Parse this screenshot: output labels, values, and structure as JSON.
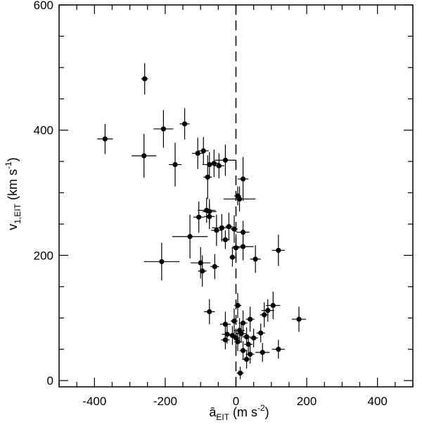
{
  "chart_data": {
    "type": "scatter",
    "title": "",
    "xlabel": {
      "base": "ā",
      "sub": "EIT",
      "unit_open": " (m s",
      "unit_sup": "-2",
      "unit_close": ")"
    },
    "ylabel": {
      "base": "v",
      "sub": "1,EIT",
      "unit_open": " (km s",
      "unit_sup": "-1",
      "unit_close": ")"
    },
    "xlim": [
      -500,
      500
    ],
    "ylim": [
      -10,
      600
    ],
    "x_ticks": [
      -400,
      -200,
      0,
      200,
      400
    ],
    "y_ticks": [
      0,
      200,
      400,
      600
    ],
    "x_tick_labels": [
      "-400",
      "-200",
      "0",
      "200",
      "400"
    ],
    "y_tick_labels": [
      "0",
      "200",
      "400",
      "600"
    ],
    "x_minor_step": 50,
    "y_minor_step": 50,
    "reference_line": {
      "x": 0,
      "style": "dashed"
    },
    "grid": false,
    "legend": "none",
    "points": [
      {
        "x": -258,
        "y": 482,
        "xerr": 10,
        "yerr": 25
      },
      {
        "x": -370,
        "y": 386,
        "xerr": 22,
        "yerr": 24
      },
      {
        "x": -260,
        "y": 359,
        "xerr": 35,
        "yerr": 35
      },
      {
        "x": -205,
        "y": 402,
        "xerr": 28,
        "yerr": 30
      },
      {
        "x": -172,
        "y": 345,
        "xerr": 18,
        "yerr": 35
      },
      {
        "x": -145,
        "y": 410,
        "xerr": 14,
        "yerr": 25
      },
      {
        "x": -108,
        "y": 363,
        "xerr": 16,
        "yerr": 25
      },
      {
        "x": -92,
        "y": 367,
        "xerr": 15,
        "yerr": 22
      },
      {
        "x": -75,
        "y": 345,
        "xerr": 20,
        "yerr": 20
      },
      {
        "x": -80,
        "y": 325,
        "xerr": 12,
        "yerr": 35
      },
      {
        "x": -62,
        "y": 347,
        "xerr": 15,
        "yerr": 22
      },
      {
        "x": -48,
        "y": 343,
        "xerr": 15,
        "yerr": 20
      },
      {
        "x": -30,
        "y": 352,
        "xerr": 30,
        "yerr": 25
      },
      {
        "x": 20,
        "y": 322,
        "xerr": 15,
        "yerr": 35
      },
      {
        "x": 5,
        "y": 295,
        "xerr": 10,
        "yerr": 15
      },
      {
        "x": 10,
        "y": 290,
        "xerr": 45,
        "yerr": 20
      },
      {
        "x": -83,
        "y": 272,
        "xerr": 25,
        "yerr": 20
      },
      {
        "x": -75,
        "y": 270,
        "xerr": 20,
        "yerr": 20
      },
      {
        "x": -105,
        "y": 261,
        "xerr": 15,
        "yerr": 25
      },
      {
        "x": -75,
        "y": 262,
        "xerr": 15,
        "yerr": 20
      },
      {
        "x": -40,
        "y": 244,
        "xerr": 28,
        "yerr": 22
      },
      {
        "x": -20,
        "y": 246,
        "xerr": 10,
        "yerr": 22
      },
      {
        "x": -55,
        "y": 240,
        "xerr": 15,
        "yerr": 25
      },
      {
        "x": -5,
        "y": 242,
        "xerr": 10,
        "yerr": 22
      },
      {
        "x": -130,
        "y": 230,
        "xerr": 50,
        "yerr": 35
      },
      {
        "x": 20,
        "y": 237,
        "xerr": 18,
        "yerr": 18
      },
      {
        "x": -30,
        "y": 225,
        "xerr": 12,
        "yerr": 15
      },
      {
        "x": 0,
        "y": 212,
        "xerr": 12,
        "yerr": 22
      },
      {
        "x": 20,
        "y": 214,
        "xerr": 30,
        "yerr": 22
      },
      {
        "x": 55,
        "y": 194,
        "xerr": 15,
        "yerr": 22
      },
      {
        "x": 120,
        "y": 208,
        "xerr": 18,
        "yerr": 25
      },
      {
        "x": -10,
        "y": 197,
        "xerr": 8,
        "yerr": 15
      },
      {
        "x": -210,
        "y": 190,
        "xerr": 50,
        "yerr": 30
      },
      {
        "x": -100,
        "y": 188,
        "xerr": 28,
        "yerr": 25
      },
      {
        "x": -95,
        "y": 175,
        "xerr": 12,
        "yerr": 25
      },
      {
        "x": -60,
        "y": 182,
        "xerr": 12,
        "yerr": 20
      },
      {
        "x": -75,
        "y": 110,
        "xerr": 15,
        "yerr": 20
      },
      {
        "x": 5,
        "y": 120,
        "xerr": 10,
        "yerr": 20
      },
      {
        "x": 90,
        "y": 112,
        "xerr": 18,
        "yerr": 18
      },
      {
        "x": 105,
        "y": 120,
        "xerr": 20,
        "yerr": 22
      },
      {
        "x": 178,
        "y": 98,
        "xerr": 20,
        "yerr": 20
      },
      {
        "x": -30,
        "y": 90,
        "xerr": 15,
        "yerr": 20
      },
      {
        "x": -5,
        "y": 95,
        "xerr": 10,
        "yerr": 20
      },
      {
        "x": 20,
        "y": 92,
        "xerr": 12,
        "yerr": 20
      },
      {
        "x": 40,
        "y": 98,
        "xerr": 12,
        "yerr": 20
      },
      {
        "x": 80,
        "y": 105,
        "xerr": 12,
        "yerr": 20
      },
      {
        "x": 10,
        "y": 80,
        "xerr": 15,
        "yerr": 20
      },
      {
        "x": -25,
        "y": 74,
        "xerr": 15,
        "yerr": 15
      },
      {
        "x": -10,
        "y": 72,
        "xerr": 12,
        "yerr": 15
      },
      {
        "x": 0,
        "y": 68,
        "xerr": 10,
        "yerr": 15
      },
      {
        "x": 15,
        "y": 75,
        "xerr": 15,
        "yerr": 15
      },
      {
        "x": 30,
        "y": 70,
        "xerr": 12,
        "yerr": 15
      },
      {
        "x": -30,
        "y": 65,
        "xerr": 12,
        "yerr": 15
      },
      {
        "x": 5,
        "y": 62,
        "xerr": 10,
        "yerr": 15
      },
      {
        "x": 35,
        "y": 58,
        "xerr": 12,
        "yerr": 15
      },
      {
        "x": 50,
        "y": 68,
        "xerr": 12,
        "yerr": 15
      },
      {
        "x": 70,
        "y": 76,
        "xerr": 12,
        "yerr": 15
      },
      {
        "x": 20,
        "y": 48,
        "xerr": 10,
        "yerr": 15
      },
      {
        "x": 40,
        "y": 42,
        "xerr": 12,
        "yerr": 15
      },
      {
        "x": 75,
        "y": 45,
        "xerr": 20,
        "yerr": 15
      },
      {
        "x": 120,
        "y": 50,
        "xerr": 18,
        "yerr": 15
      },
      {
        "x": 30,
        "y": 34,
        "xerr": 12,
        "yerr": 15
      },
      {
        "x": 12,
        "y": 12,
        "xerr": 10,
        "yerr": 10
      }
    ]
  }
}
